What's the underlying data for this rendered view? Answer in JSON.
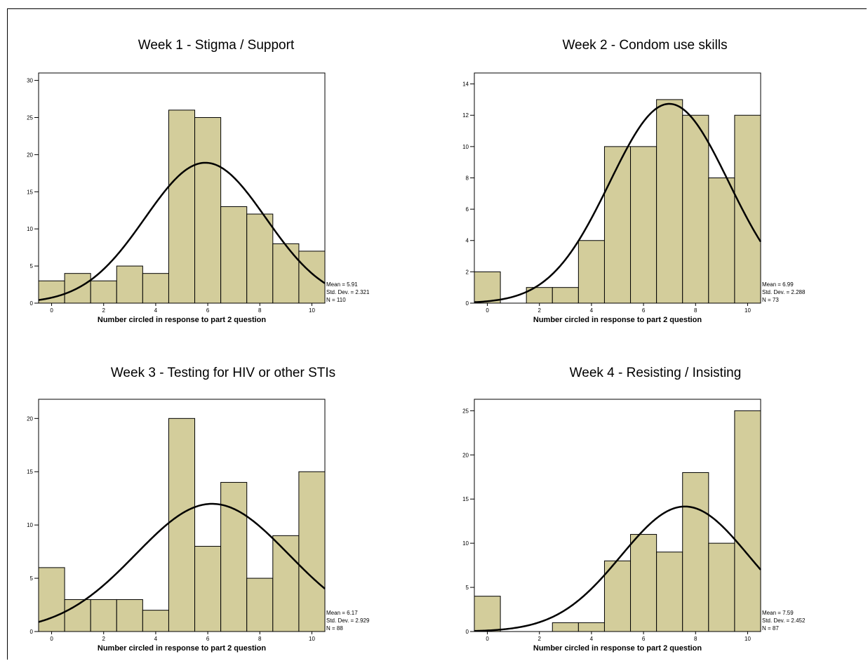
{
  "colors": {
    "bar_fill": "#d3cd9b",
    "bar_stroke": "#000000",
    "curve": "#000000",
    "background": "#ffffff"
  },
  "chart_data": [
    {
      "type": "bar",
      "title": "Week 1 - Stigma / Support",
      "xlabel": "Number circled in response to part 2 question",
      "ylabel": "",
      "categories": [
        "0",
        "1",
        "2",
        "3",
        "4",
        "5",
        "6",
        "7",
        "8",
        "9",
        "10"
      ],
      "values": [
        3,
        4,
        3,
        5,
        4,
        26,
        25,
        13,
        12,
        8,
        7
      ],
      "x_ticks": [
        "0",
        "2",
        "4",
        "6",
        "8",
        "10"
      ],
      "y_ticks": [
        "0",
        "5",
        "10",
        "15",
        "20",
        "25",
        "30"
      ],
      "ylim": [
        0,
        31
      ],
      "stats": {
        "mean": "Mean = 5.91",
        "sd": "Std. Dev. = 2.321",
        "n": "N = 110"
      },
      "normal_curve": {
        "mean": 5.91,
        "sd": 2.321,
        "n": 110
      },
      "grid": false
    },
    {
      "type": "bar",
      "title": "Week 2 - Condom use skills",
      "xlabel": "Number circled in response to part 2 question",
      "ylabel": "",
      "categories": [
        "0",
        "1",
        "2",
        "3",
        "4",
        "5",
        "6",
        "7",
        "8",
        "9",
        "10"
      ],
      "values": [
        2,
        0,
        1,
        1,
        4,
        10,
        10,
        13,
        12,
        8,
        12
      ],
      "x_ticks": [
        "0",
        "2",
        "4",
        "6",
        "8",
        "10"
      ],
      "y_ticks": [
        "0",
        "2",
        "4",
        "6",
        "8",
        "10",
        "12",
        "14"
      ],
      "ylim": [
        0,
        14.7
      ],
      "stats": {
        "mean": "Mean = 6.99",
        "sd": "Std. Dev. = 2.288",
        "n": "N = 73"
      },
      "normal_curve": {
        "mean": 6.99,
        "sd": 2.288,
        "n": 73
      },
      "grid": false
    },
    {
      "type": "bar",
      "title": "Week 3 - Testing for HIV or other STIs",
      "xlabel": "Number circled in response to part 2 question",
      "ylabel": "",
      "categories": [
        "0",
        "1",
        "2",
        "3",
        "4",
        "5",
        "6",
        "7",
        "8",
        "9",
        "10"
      ],
      "values": [
        6,
        3,
        3,
        3,
        2,
        20,
        8,
        14,
        5,
        9,
        15
      ],
      "x_ticks": [
        "0",
        "2",
        "4",
        "6",
        "8",
        "10"
      ],
      "y_ticks": [
        "0",
        "5",
        "10",
        "15",
        "20"
      ],
      "ylim": [
        0,
        21.8
      ],
      "stats": {
        "mean": "Mean = 6.17",
        "sd": "Std. Dev. = 2.929",
        "n": "N = 88"
      },
      "normal_curve": {
        "mean": 6.17,
        "sd": 2.929,
        "n": 88
      },
      "grid": false
    },
    {
      "type": "bar",
      "title": "Week 4 - Resisting / Insisting",
      "xlabel": "Number circled in response to part 2 question",
      "ylabel": "",
      "categories": [
        "0",
        "1",
        "2",
        "3",
        "4",
        "5",
        "6",
        "7",
        "8",
        "9",
        "10"
      ],
      "values": [
        4,
        0,
        0,
        1,
        1,
        8,
        11,
        9,
        18,
        10,
        25
      ],
      "x_ticks": [
        "0",
        "2",
        "4",
        "6",
        "8",
        "10"
      ],
      "y_ticks": [
        "0",
        "5",
        "10",
        "15",
        "20",
        "25"
      ],
      "ylim": [
        0,
        26.3
      ],
      "stats": {
        "mean": "Mean = 7.59",
        "sd": "Std. Dev. = 2.452",
        "n": "N = 87"
      },
      "normal_curve": {
        "mean": 7.59,
        "sd": 2.452,
        "n": 87
      },
      "grid": false
    }
  ]
}
